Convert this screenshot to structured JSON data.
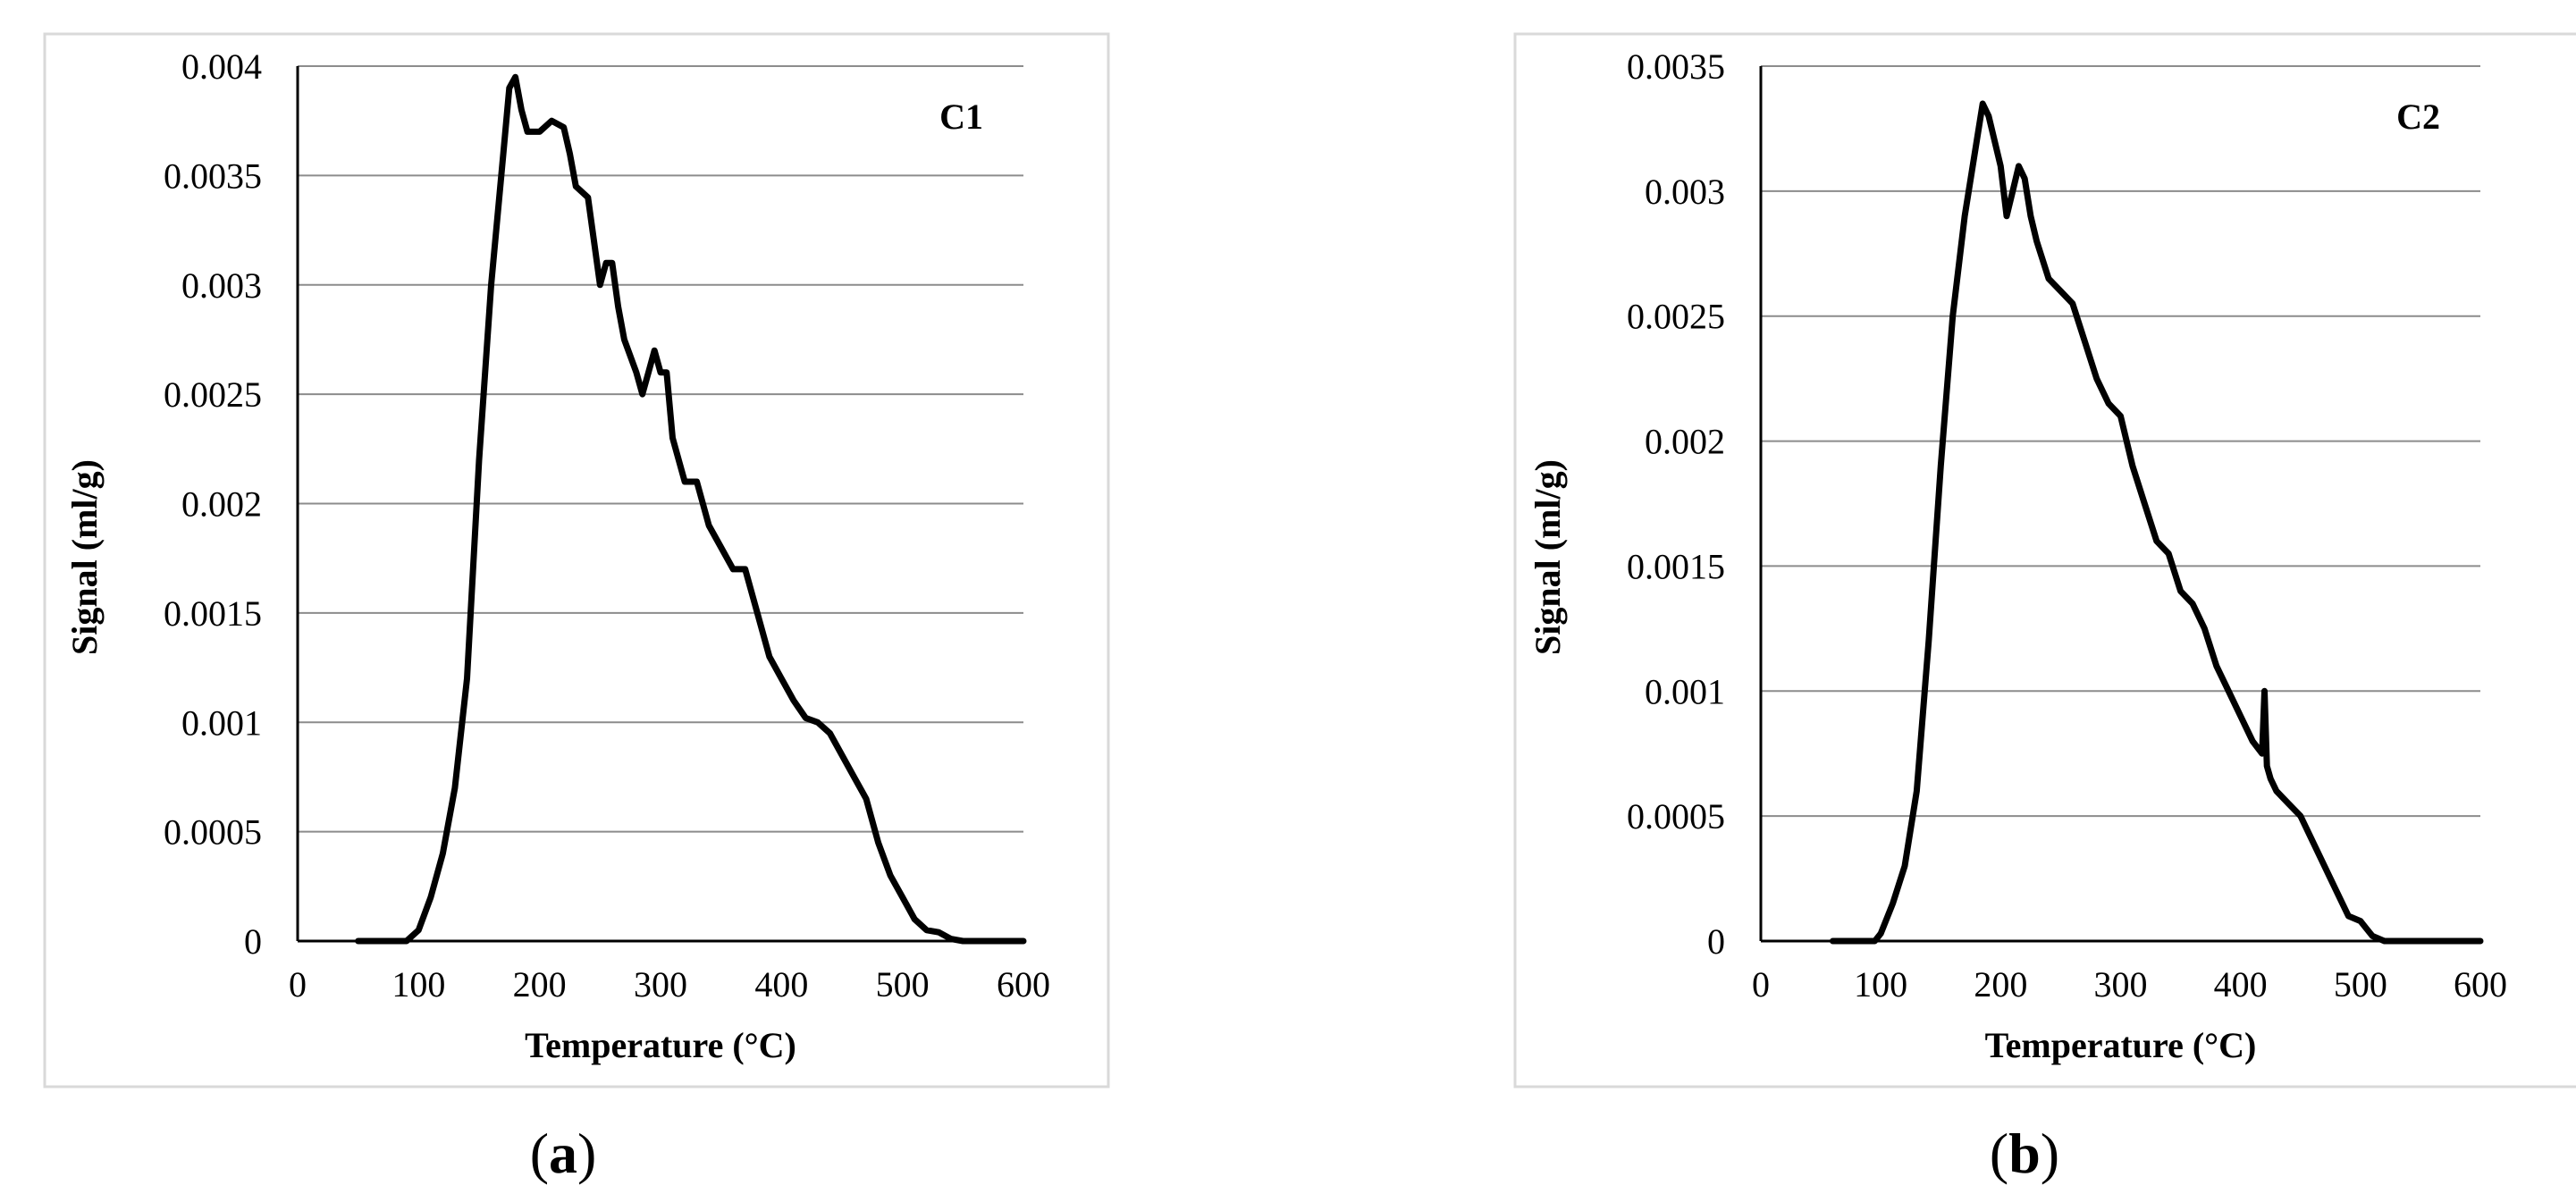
{
  "chart_data": [
    {
      "type": "line",
      "panel_label": "C1",
      "caption_letter": "a",
      "xlabel": "Temperature (°C)",
      "ylabel": "Signal (ml/g)",
      "xlim": [
        0,
        600
      ],
      "ylim": [
        0,
        0.004
      ],
      "x_ticks": [
        "0",
        "100",
        "200",
        "300",
        "400",
        "500",
        "600"
      ],
      "y_ticks": [
        "0",
        "0.0005",
        "0.001",
        "0.0015",
        "0.002",
        "0.0025",
        "0.003",
        "0.0035",
        "0.004"
      ],
      "grid": "horizontal",
      "series": [
        {
          "x": [
            50,
            90,
            100,
            110,
            120,
            130,
            140,
            150,
            160,
            170,
            175,
            180,
            185,
            190,
            195,
            200,
            210,
            220,
            225,
            230,
            240,
            250,
            255,
            260,
            265,
            270,
            280,
            285,
            290,
            295,
            300,
            305,
            310,
            320,
            330,
            340,
            350,
            360,
            370,
            380,
            390,
            400,
            410,
            420,
            430,
            440,
            450,
            460,
            470,
            480,
            490,
            500,
            510,
            520,
            530,
            540,
            550,
            600
          ],
          "y": [
            0,
            0,
            5e-05,
            0.0002,
            0.0004,
            0.0007,
            0.0012,
            0.0022,
            0.003,
            0.0036,
            0.0039,
            0.00395,
            0.0038,
            0.0037,
            0.0037,
            0.0037,
            0.00375,
            0.00372,
            0.0036,
            0.00345,
            0.0034,
            0.003,
            0.0031,
            0.0031,
            0.0029,
            0.00275,
            0.0026,
            0.0025,
            0.0026,
            0.0027,
            0.0026,
            0.0026,
            0.0023,
            0.0021,
            0.0021,
            0.0019,
            0.0018,
            0.0017,
            0.0017,
            0.0015,
            0.0013,
            0.0012,
            0.0011,
            0.00102,
            0.001,
            0.00095,
            0.00085,
            0.00075,
            0.00065,
            0.00045,
            0.0003,
            0.0002,
            0.0001,
            5e-05,
            4e-05,
            1e-05,
            0,
            0
          ]
        }
      ]
    },
    {
      "type": "line",
      "panel_label": "C2",
      "caption_letter": "b",
      "xlabel": "Temperature (°C)",
      "ylabel": "Signal (ml/g)",
      "xlim": [
        0,
        600
      ],
      "ylim": [
        0,
        0.0035
      ],
      "x_ticks": [
        "0",
        "100",
        "200",
        "300",
        "400",
        "500",
        "600"
      ],
      "y_ticks": [
        "0",
        "0.0005",
        "0.001",
        "0.0015",
        "0.002",
        "0.0025",
        "0.003",
        "0.0035"
      ],
      "grid": "horizontal",
      "series": [
        {
          "x": [
            60,
            95,
            100,
            110,
            120,
            130,
            140,
            150,
            160,
            170,
            180,
            185,
            190,
            200,
            205,
            210,
            215,
            220,
            225,
            230,
            240,
            250,
            260,
            270,
            280,
            290,
            300,
            310,
            320,
            330,
            340,
            350,
            360,
            365,
            370,
            380,
            390,
            400,
            410,
            418,
            420,
            422,
            425,
            430,
            440,
            450,
            460,
            470,
            480,
            490,
            500,
            505,
            510,
            520,
            600
          ],
          "y": [
            0,
            0,
            3e-05,
            0.00015,
            0.0003,
            0.0006,
            0.0012,
            0.0019,
            0.0025,
            0.0029,
            0.0032,
            0.00335,
            0.0033,
            0.0031,
            0.0029,
            0.003,
            0.0031,
            0.00305,
            0.0029,
            0.0028,
            0.00265,
            0.0026,
            0.00255,
            0.0024,
            0.00225,
            0.00215,
            0.0021,
            0.0019,
            0.00175,
            0.0016,
            0.00155,
            0.0014,
            0.00135,
            0.0013,
            0.00125,
            0.0011,
            0.001,
            0.0009,
            0.0008,
            0.00075,
            0.001,
            0.0007,
            0.00065,
            0.0006,
            0.00055,
            0.0005,
            0.0004,
            0.0003,
            0.0002,
            0.0001,
            8e-05,
            5e-05,
            2e-05,
            0,
            0
          ]
        }
      ]
    }
  ]
}
